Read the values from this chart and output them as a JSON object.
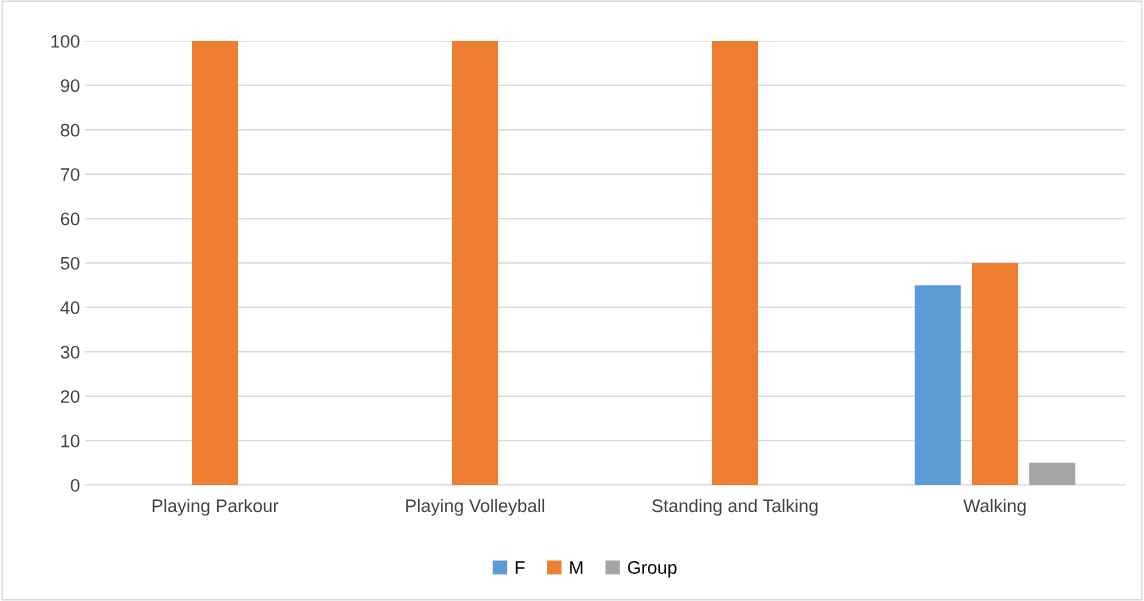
{
  "chart_data": {
    "type": "bar",
    "categories": [
      "Playing Parkour",
      "Playing Volleyball",
      "Standing and Talking",
      "Walking"
    ],
    "series": [
      {
        "name": "F",
        "color": "#5b9bd5",
        "values": [
          null,
          null,
          null,
          45
        ]
      },
      {
        "name": "M",
        "color": "#ed7d31",
        "values": [
          100,
          100,
          100,
          50
        ]
      },
      {
        "name": "Group",
        "color": "#a5a5a5",
        "values": [
          null,
          null,
          null,
          5
        ]
      }
    ],
    "ylim": [
      0,
      100
    ],
    "yticks": [
      0,
      10,
      20,
      30,
      40,
      50,
      60,
      70,
      80,
      90,
      100
    ],
    "grid": "y",
    "legend": "bottom"
  }
}
